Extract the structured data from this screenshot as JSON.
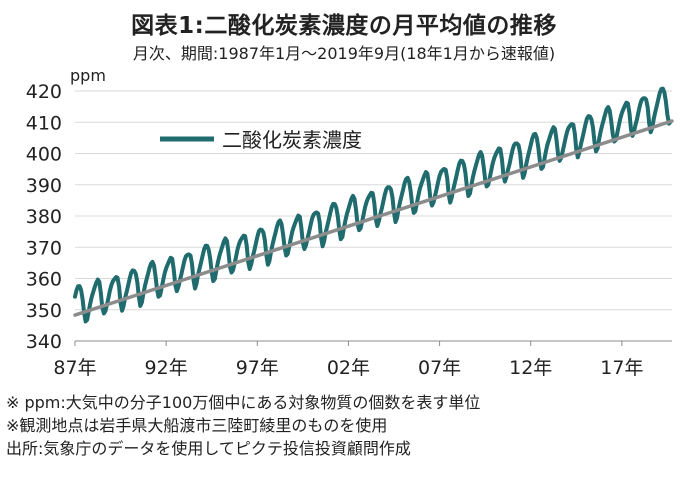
{
  "header": {
    "title": "図表1:二酸化炭素濃度の月平均値の推移",
    "subtitle": "月次、期間:1987年1月～2019年9月(18年1月から速報値)"
  },
  "colors": {
    "series": "#1f6b6e",
    "trend": "#8c8c8c",
    "grid": "#d9d9d9",
    "axis": "#8c8c8c"
  },
  "chart_data": {
    "type": "line",
    "unit_label": "ppm",
    "legend": {
      "position": "top-left"
    },
    "y_axis": {
      "min": 340,
      "max": 420,
      "step": 10,
      "ticks": [
        "340",
        "350",
        "360",
        "370",
        "380",
        "390",
        "400",
        "410",
        "420"
      ]
    },
    "x_axis": {
      "start_year": 1987,
      "end_year": 2019.75,
      "ticks": [
        "87年",
        "92年",
        "97年",
        "02年",
        "07年",
        "12年",
        "17年"
      ],
      "tick_years": [
        1987,
        1992,
        1997,
        2002,
        2007,
        2012,
        2017
      ]
    },
    "grid": true,
    "series": [
      {
        "name": "二酸化炭素濃度",
        "type": "monthly",
        "start": "1987-01",
        "end": "2019-09",
        "trend_start": 351.0,
        "trend_slope_per_year": 1.83,
        "seasonal_amplitude": 5.8
      }
    ],
    "trend_line": {
      "x": [
        1987,
        2019.75
      ],
      "y": [
        348.3,
        410.4
      ]
    }
  },
  "notes": [
    "※ ppm:大気中の分子100万個中にある対象物質の個数を表す単位",
    "※観測地点は岩手県大船渡市三陸町綾里のものを使用",
    "出所:気象庁のデータを使用してピクテ投信投資顧問作成"
  ]
}
